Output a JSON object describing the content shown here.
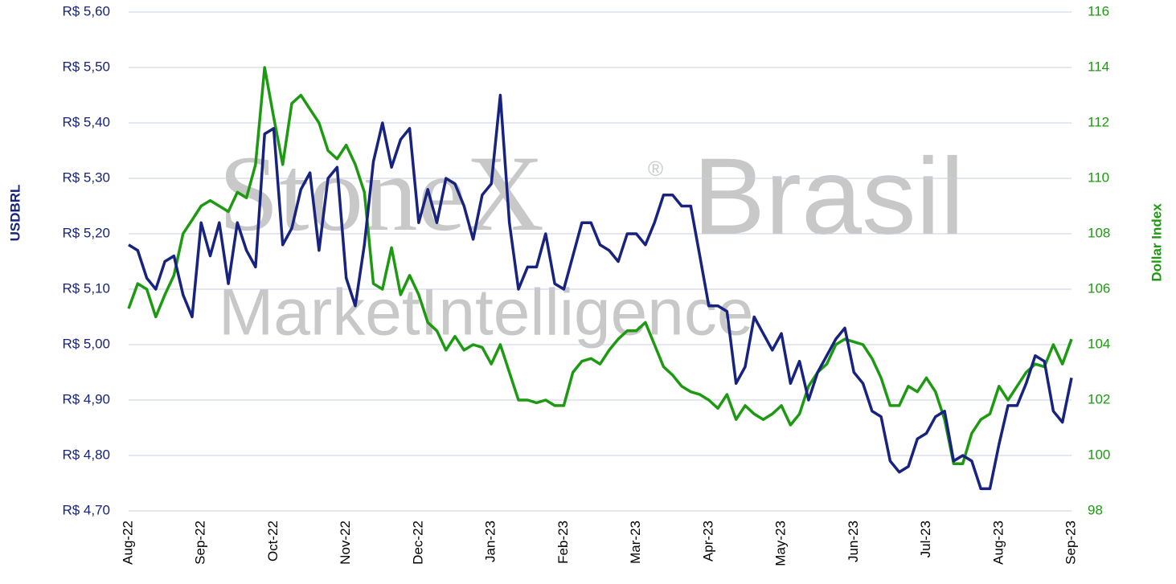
{
  "chart_data": {
    "type": "line",
    "watermark": {
      "brand": "StoneX",
      "mark": "®",
      "region": "Brasil",
      "unit": "MarketIntelligence"
    },
    "ylabel": "USDBRL",
    "y2label": "Dollar Index",
    "categories": [
      "Aug-22",
      null,
      null,
      null,
      null,
      null,
      null,
      null,
      "Sep-22",
      null,
      null,
      null,
      null,
      null,
      null,
      null,
      "Oct-22",
      null,
      null,
      null,
      null,
      null,
      null,
      null,
      "Nov-22",
      null,
      null,
      null,
      null,
      null,
      null,
      null,
      "Dec-22",
      null,
      null,
      null,
      null,
      null,
      null,
      null,
      "Jan-23",
      null,
      null,
      null,
      null,
      null,
      null,
      null,
      "Feb-23",
      null,
      null,
      null,
      null,
      null,
      null,
      null,
      "Mar-23",
      null,
      null,
      null,
      null,
      null,
      null,
      null,
      "Apr-23",
      null,
      null,
      null,
      null,
      null,
      null,
      null,
      "May-23",
      null,
      null,
      null,
      null,
      null,
      null,
      null,
      "Jun-23",
      null,
      null,
      null,
      null,
      null,
      null,
      null,
      "Jul-23",
      null,
      null,
      null,
      null,
      null,
      null,
      null,
      "Aug-23",
      null,
      null,
      null,
      null,
      null,
      null,
      null,
      "Sep-23"
    ],
    "series": [
      {
        "name": "USDBRL",
        "color": "#17237e",
        "axis": "y",
        "values": [
          5.18,
          5.17,
          5.12,
          5.1,
          5.15,
          5.16,
          5.09,
          5.05,
          5.22,
          5.16,
          5.22,
          5.11,
          5.22,
          5.17,
          5.14,
          5.38,
          5.39,
          5.18,
          5.21,
          5.28,
          5.31,
          5.17,
          5.3,
          5.32,
          5.12,
          5.07,
          5.18,
          5.33,
          5.4,
          5.32,
          5.37,
          5.39,
          5.22,
          5.28,
          5.22,
          5.3,
          5.29,
          5.25,
          5.19,
          5.27,
          5.29,
          5.45,
          5.22,
          5.1,
          5.14,
          5.14,
          5.2,
          5.11,
          5.1,
          5.16,
          5.22,
          5.22,
          5.18,
          5.17,
          5.15,
          5.2,
          5.2,
          5.18,
          5.22,
          5.27,
          5.27,
          5.25,
          5.25,
          5.16,
          5.07,
          5.07,
          5.06,
          4.93,
          4.96,
          5.05,
          5.02,
          4.99,
          5.02,
          4.93,
          4.97,
          4.9,
          4.95,
          4.98,
          5.01,
          5.03,
          4.95,
          4.93,
          4.88,
          4.87,
          4.79,
          4.77,
          4.78,
          4.83,
          4.84,
          4.87,
          4.88,
          4.79,
          4.8,
          4.79,
          4.74,
          4.74,
          4.82,
          4.89,
          4.89,
          4.93,
          4.98,
          4.97,
          4.88,
          4.86,
          4.94
        ]
      },
      {
        "name": "Dollar Index",
        "color": "#1e9a12",
        "axis": "y2",
        "values": [
          105.3,
          106.2,
          106.0,
          105.0,
          105.8,
          106.5,
          108.0,
          108.5,
          109.0,
          109.2,
          109.0,
          108.8,
          109.5,
          109.3,
          110.5,
          114.0,
          112.2,
          110.5,
          112.7,
          113.0,
          112.5,
          112.0,
          111.0,
          110.7,
          111.2,
          110.5,
          109.5,
          106.2,
          106.0,
          107.5,
          105.8,
          106.5,
          105.8,
          104.8,
          104.5,
          103.8,
          104.3,
          103.8,
          104.0,
          103.9,
          103.3,
          104.0,
          103.0,
          102.0,
          102.0,
          101.9,
          102.0,
          101.8,
          101.8,
          103.0,
          103.4,
          103.5,
          103.3,
          103.8,
          104.2,
          104.5,
          104.5,
          104.8,
          104.0,
          103.2,
          102.9,
          102.5,
          102.3,
          102.2,
          102.0,
          101.7,
          102.2,
          101.3,
          101.8,
          101.5,
          101.3,
          101.5,
          101.8,
          101.1,
          101.5,
          102.5,
          103.0,
          103.3,
          104.0,
          104.2,
          104.1,
          104.0,
          103.5,
          102.8,
          101.8,
          101.8,
          102.5,
          102.3,
          102.8,
          102.3,
          101.3,
          99.7,
          99.7,
          100.8,
          101.3,
          101.5,
          102.5,
          102.0,
          102.5,
          103.0,
          103.3,
          103.2,
          104.0,
          103.3,
          104.2
        ]
      }
    ],
    "ylim": [
      4.7,
      5.6
    ],
    "yticks": [
      {
        "value": 4.7,
        "label": "R$ 4,70"
      },
      {
        "value": 4.8,
        "label": "R$ 4,80"
      },
      {
        "value": 4.9,
        "label": "R$ 4,90"
      },
      {
        "value": 5.0,
        "label": "R$ 5,00"
      },
      {
        "value": 5.1,
        "label": "R$ 5,10"
      },
      {
        "value": 5.2,
        "label": "R$ 5,20"
      },
      {
        "value": 5.3,
        "label": "R$ 5,30"
      },
      {
        "value": 5.4,
        "label": "R$ 5,40"
      },
      {
        "value": 5.5,
        "label": "R$ 5,50"
      },
      {
        "value": 5.6,
        "label": "R$ 5,60"
      }
    ],
    "y2lim": [
      98,
      116
    ],
    "y2ticks": [
      98,
      100,
      102,
      104,
      106,
      108,
      110,
      112,
      114,
      116
    ],
    "grid": true
  }
}
